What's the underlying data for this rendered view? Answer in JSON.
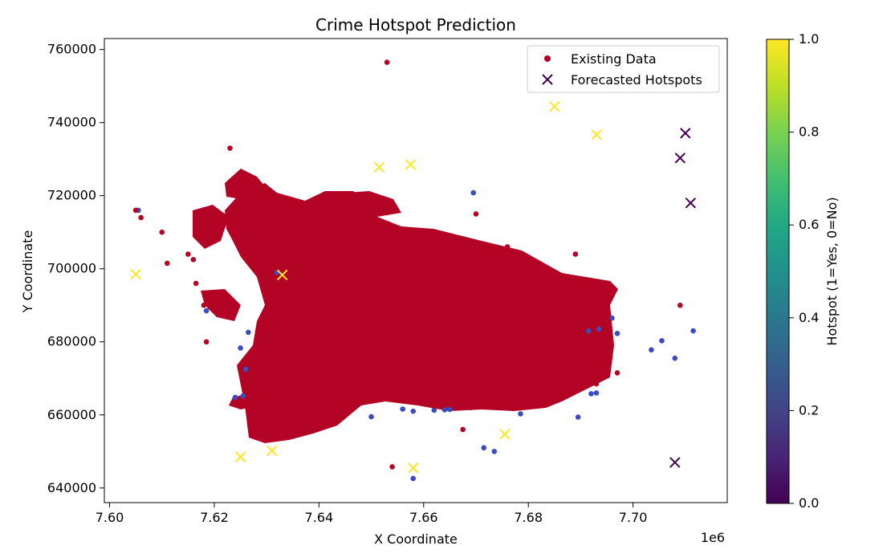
{
  "chart_data": {
    "type": "scatter",
    "title": "Crime Hotspot Prediction",
    "xlabel": "X Coordinate",
    "ylabel": "Y Coordinate",
    "x_offset_label": "1e6",
    "xlim": [
      7.599,
      7.718
    ],
    "ylim": [
      636000,
      763000
    ],
    "x_ticks": [
      "7.60",
      "7.62",
      "7.64",
      "7.66",
      "7.68",
      "7.70"
    ],
    "y_ticks": [
      "640000",
      "660000",
      "680000",
      "700000",
      "720000",
      "740000",
      "760000"
    ],
    "legend": {
      "placement": "top-right",
      "entries": [
        "Existing Data",
        "Forecasted Hotspots"
      ]
    },
    "colorbar": {
      "label": "Hotspot (1=Yes, 0=No)",
      "range": [
        0.0,
        1.0
      ],
      "ticks": [
        "0.0",
        "0.2",
        "0.4",
        "0.6",
        "0.8",
        "1.0"
      ],
      "colormap": "viridis"
    },
    "colors": {
      "existing_hot": "#b40426",
      "existing_cold": "#3b4cc0",
      "forecast_yes": "#fde725",
      "forecast_no": "#440154"
    },
    "series": [
      {
        "name": "Existing Data",
        "marker": "circle",
        "points_hotspot_1": [
          [
            7.653,
            756500
          ],
          [
            7.623,
            733000
          ],
          [
            7.605,
            716000
          ],
          [
            7.606,
            714000
          ],
          [
            7.61,
            710000
          ],
          [
            7.611,
            701500
          ],
          [
            7.615,
            704000
          ],
          [
            7.616,
            702500
          ],
          [
            7.669,
            690000
          ],
          [
            7.689,
            704000
          ],
          [
            7.709,
            690000
          ],
          [
            7.654,
            645800
          ],
          [
            7.6675,
            656000
          ],
          [
            7.636,
            655000
          ],
          [
            7.618,
            690000
          ],
          [
            7.6165,
            696000
          ],
          [
            7.6185,
            680000
          ],
          [
            7.629,
            721000
          ],
          [
            7.697,
            671500
          ],
          [
            7.693,
            668500
          ],
          [
            7.67,
            715000
          ],
          [
            7.676,
            706000
          ],
          [
            7.682,
            699000
          ],
          [
            7.685,
            694000
          ],
          [
            7.69,
            688000
          ],
          [
            7.694,
            682000
          ],
          [
            7.63,
            707000
          ],
          [
            7.676,
            662500
          ],
          [
            7.669,
            662000
          ],
          [
            7.662,
            662500
          ]
        ],
        "points_hotspot_0": [
          [
            7.6055,
            716000
          ],
          [
            7.6695,
            720800
          ],
          [
            7.625,
            678300
          ],
          [
            7.6185,
            688500
          ],
          [
            7.626,
            672500
          ],
          [
            7.6265,
            682600
          ],
          [
            7.6255,
            665200
          ],
          [
            7.624,
            664800
          ],
          [
            7.65,
            659500
          ],
          [
            7.658,
            661000
          ],
          [
            7.662,
            661300
          ],
          [
            7.665,
            661500
          ],
          [
            7.6715,
            651000
          ],
          [
            7.6735,
            650000
          ],
          [
            7.6785,
            660300
          ],
          [
            7.6895,
            659400
          ],
          [
            7.692,
            665800
          ],
          [
            7.693,
            666000
          ],
          [
            7.6935,
            683500
          ],
          [
            7.696,
            686500
          ],
          [
            7.697,
            682300
          ],
          [
            7.7035,
            677800
          ],
          [
            7.7055,
            680300
          ],
          [
            7.708,
            675500
          ],
          [
            7.7115,
            683000
          ],
          [
            7.658,
            642600
          ],
          [
            7.656,
            661600
          ],
          [
            7.664,
            661400
          ],
          [
            7.6915,
            683000
          ],
          [
            7.632,
            699000
          ]
        ]
      },
      {
        "name": "Forecasted Hotspots",
        "marker": "x",
        "points_hotspot_1": [
          [
            7.605,
            698500
          ],
          [
            7.625,
            648500
          ],
          [
            7.631,
            650200
          ],
          [
            7.633,
            698300
          ],
          [
            7.6515,
            727800
          ],
          [
            7.6575,
            728500
          ],
          [
            7.658,
            645500
          ],
          [
            7.6755,
            654700
          ],
          [
            7.685,
            744400
          ],
          [
            7.693,
            736700
          ]
        ],
        "points_hotspot_0": [
          [
            7.71,
            737100
          ],
          [
            7.709,
            730300
          ],
          [
            7.711,
            718000
          ],
          [
            7.708,
            647000
          ]
        ]
      }
    ]
  }
}
